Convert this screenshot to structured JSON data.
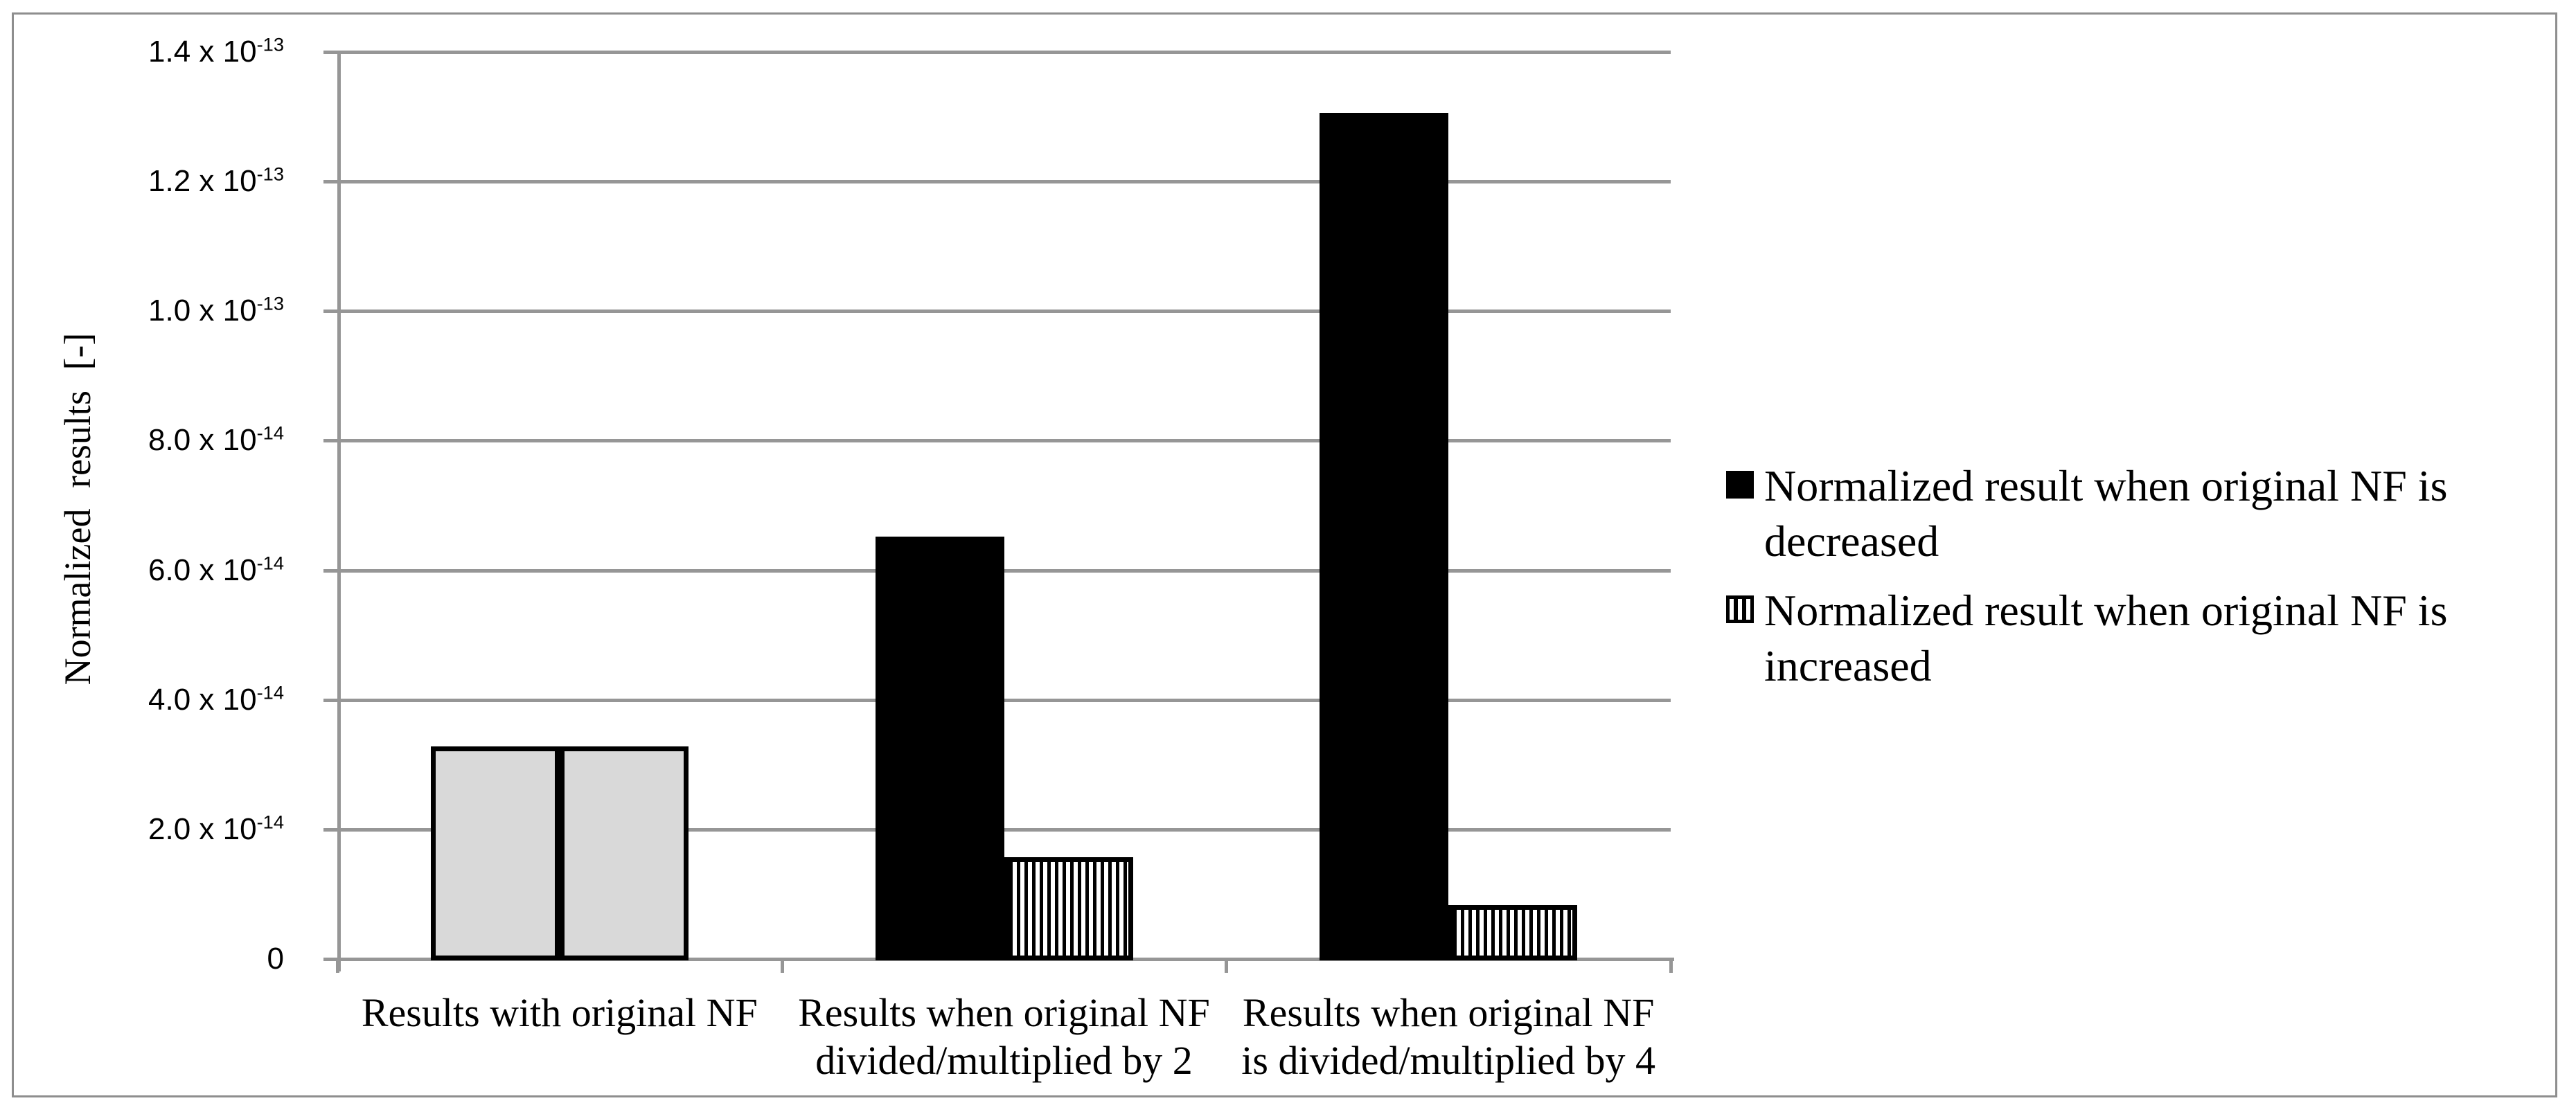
{
  "figure": {
    "background": "#ffffff",
    "border_color": "#8e8e8e"
  },
  "colors": {
    "grid_and_axis": "#969696",
    "bar_black": "#000000",
    "bar_gray_fill": "#d9d9d9",
    "bar_outline": "#000000",
    "stripe_pattern": "vertical black stripes on white"
  },
  "y_axis": {
    "title": "Normalized results [-]",
    "tick_labels": [
      {
        "base": "1.4 x 10",
        "exp": "-13",
        "value": 1.4e-13
      },
      {
        "base": "1.2 x 10",
        "exp": "-13",
        "value": 1.2e-13
      },
      {
        "base": "1.0 x 10",
        "exp": "-13",
        "value": 1e-13
      },
      {
        "base": "8.0 x 10",
        "exp": "-14",
        "value": 8e-14
      },
      {
        "base": "6.0 x 10",
        "exp": "-14",
        "value": 6e-14
      },
      {
        "base": "4.0 x 10",
        "exp": "-14",
        "value": 4e-14
      },
      {
        "base": "2.0 x 10",
        "exp": "-14",
        "value": 2e-14
      },
      {
        "base": "0",
        "exp": "",
        "value": 0
      }
    ]
  },
  "x_axis": {
    "category_label_lines": [
      [
        "Results with original NF"
      ],
      [
        "Results when original NF",
        "divided/multiplied by 2"
      ],
      [
        "Results when original NF",
        "is divided/multiplied by 4"
      ]
    ]
  },
  "legend": {
    "items": [
      {
        "marker": "black-square",
        "lines": [
          "Normalized result when original NF is",
          "decreased"
        ],
        "label": "Normalized result when original NF is decreased"
      },
      {
        "marker": "striped-square",
        "lines": [
          "Normalized result when original NF is",
          "increased"
        ],
        "label": "Normalized result when original NF is increased"
      }
    ]
  },
  "chart_data": {
    "type": "bar",
    "title": "",
    "categories": [
      "Results with original NF",
      "Results when original NF divided/multiplied by 2",
      "Results when original NF is divided/multiplied by 4"
    ],
    "series": [
      {
        "name": "Normalized result when original NF is decreased",
        "style": "solid-black",
        "values": [
          3.28e-14,
          6.52e-14,
          1.306e-13
        ]
      },
      {
        "name": "Normalized result when original NF is increased",
        "style": "vertical-stripes",
        "values": [
          3.28e-14,
          1.57e-14,
          8.3e-15
        ]
      }
    ],
    "category_style_override": {
      "category_index": 0,
      "note": "both bars of the first category are rendered light gray with black outline (original NF result)"
    },
    "xlabel": "",
    "ylabel": "Normalized results [-]",
    "ylim": [
      0,
      1.4e-13
    ],
    "gridlines": "horizontal",
    "legend_position": "right"
  }
}
